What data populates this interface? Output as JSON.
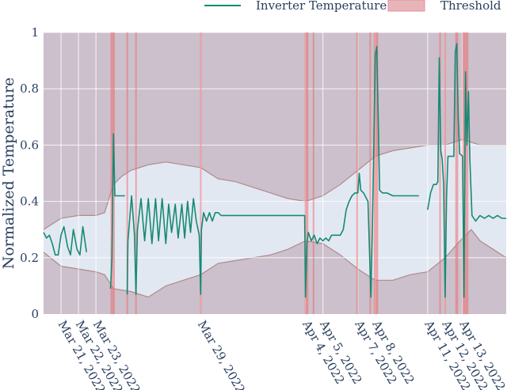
{
  "chart_data": {
    "type": "line",
    "xlabel": "",
    "ylabel": "Normalized Temperature",
    "ylim": [
      0,
      1
    ],
    "xlim": [
      "2022-03-20T00:00",
      "2022-04-15T12:00"
    ],
    "y_ticks": [
      0,
      0.2,
      0.4,
      0.6,
      0.8,
      1
    ],
    "y_tick_labels": [
      "0",
      "0.2",
      "0.4",
      "0.6",
      "0.8",
      "1"
    ],
    "x_ticks": [
      {
        "x": "2022-03-21",
        "label": "Mar 21, 2022"
      },
      {
        "x": "2022-03-22",
        "label": "Mar 22, 2022"
      },
      {
        "x": "2022-03-23",
        "label": "Mar 23, 2022"
      },
      {
        "x": "2022-03-29",
        "label": "Mar 29, 2022"
      },
      {
        "x": "2022-04-04",
        "label": "Apr 4, 2022"
      },
      {
        "x": "2022-04-05",
        "label": "Apr 5, 2022"
      },
      {
        "x": "2022-04-07",
        "label": "Apr 7, 2022"
      },
      {
        "x": "2022-04-08",
        "label": "Apr 8, 2022"
      },
      {
        "x": "2022-04-11",
        "label": "Apr 11, 2022"
      },
      {
        "x": "2022-04-12",
        "label": "Apr 12, 2022"
      },
      {
        "x": "2022-04-13",
        "label": "Apr 13, 2022"
      }
    ],
    "grid": true,
    "legend_position": "top-right",
    "colors": {
      "plot_background": "#cbc0cb",
      "band_fill": "#e2e8f2",
      "band_edge": "#b08a8a",
      "line": "#168a74",
      "threshold": "#ec6b70",
      "grid": "#ffffff",
      "text": "#2a3f5f"
    },
    "series": [
      {
        "name": "Inverter Temperature",
        "segments": [
          [
            [
              "2022-03-20T00:00",
              0.29
            ],
            [
              "2022-03-20T04:00",
              0.27
            ],
            [
              "2022-03-20T08:00",
              0.28
            ],
            [
              "2022-03-20T12:00",
              0.25
            ],
            [
              "2022-03-20T16:00",
              0.21
            ],
            [
              "2022-03-20T20:00",
              0.21
            ],
            [
              "2022-03-21T00:00",
              0.28
            ],
            [
              "2022-03-21T04:00",
              0.31
            ],
            [
              "2022-03-21T09:00",
              0.24
            ],
            [
              "2022-03-21T13:00",
              0.21
            ],
            [
              "2022-03-21T17:00",
              0.3
            ],
            [
              "2022-03-21T22:00",
              0.23
            ],
            [
              "2022-03-22T02:00",
              0.21
            ],
            [
              "2022-03-22T06:00",
              0.31
            ],
            [
              "2022-03-22T11:00",
              0.22
            ]
          ],
          [
            [
              "2022-03-23T20:00",
              0.09
            ],
            [
              "2022-03-23T22:00",
              0.2
            ],
            [
              "2022-03-24T00:00",
              0.64
            ],
            [
              "2022-03-24T02:00",
              0.42
            ],
            [
              "2022-03-24T14:00",
              0.42
            ],
            [
              "2022-03-24T16:00",
              0.42
            ]
          ],
          [
            [
              "2022-03-24T19:00",
              0.07
            ],
            [
              "2022-03-24T20:00",
              0.26
            ],
            [
              "2022-03-25T01:00",
              0.42
            ],
            [
              "2022-03-25T05:00",
              0.28
            ],
            [
              "2022-03-25T07:00",
              0.07
            ],
            [
              "2022-03-25T09:00",
              0.3
            ],
            [
              "2022-03-25T14:00",
              0.41
            ],
            [
              "2022-03-25T19:00",
              0.26
            ],
            [
              "2022-03-26T00:00",
              0.41
            ],
            [
              "2022-03-26T05:00",
              0.25
            ],
            [
              "2022-03-26T10:00",
              0.41
            ],
            [
              "2022-03-26T14:00",
              0.26
            ],
            [
              "2022-03-26T19:00",
              0.41
            ],
            [
              "2022-03-27T00:00",
              0.25
            ],
            [
              "2022-03-27T04:00",
              0.39
            ],
            [
              "2022-03-27T08:00",
              0.29
            ],
            [
              "2022-03-27T13:00",
              0.39
            ],
            [
              "2022-03-27T17:00",
              0.27
            ],
            [
              "2022-03-27T22:00",
              0.39
            ],
            [
              "2022-03-28T02:00",
              0.27
            ],
            [
              "2022-03-28T06:00",
              0.4
            ],
            [
              "2022-03-28T10:00",
              0.29
            ],
            [
              "2022-03-28T14:00",
              0.41
            ],
            [
              "2022-03-28T18:00",
              0.33
            ],
            [
              "2022-03-28T22:00",
              0.28
            ],
            [
              "2022-03-29T00:00",
              0.07
            ],
            [
              "2022-03-29T01:00",
              0.3
            ],
            [
              "2022-03-29T04:00",
              0.36
            ],
            [
              "2022-03-29T08:00",
              0.33
            ],
            [
              "2022-03-29T12:00",
              0.36
            ],
            [
              "2022-03-29T16:00",
              0.33
            ],
            [
              "2022-03-29T20:00",
              0.36
            ],
            [
              "2022-03-30T00:00",
              0.36
            ],
            [
              "2022-03-30T04:00",
              0.35
            ],
            [
              "2022-04-03T12:00",
              0.35
            ],
            [
              "2022-04-03T23:00",
              0.35
            ],
            [
              "2022-04-04T00:00",
              0.06
            ],
            [
              "2022-04-04T02:00",
              0.25
            ],
            [
              "2022-04-04T04:00",
              0.29
            ],
            [
              "2022-04-04T08:00",
              0.26
            ],
            [
              "2022-04-04T12:00",
              0.28
            ],
            [
              "2022-04-04T16:00",
              0.25
            ],
            [
              "2022-04-04T20:00",
              0.27
            ],
            [
              "2022-04-05T00:00",
              0.26
            ],
            [
              "2022-04-05T04:00",
              0.27
            ],
            [
              "2022-04-05T08:00",
              0.26
            ],
            [
              "2022-04-05T12:00",
              0.28
            ],
            [
              "2022-04-05T18:00",
              0.28
            ],
            [
              "2022-04-06T00:00",
              0.28
            ],
            [
              "2022-04-06T04:00",
              0.3
            ],
            [
              "2022-04-06T08:00",
              0.37
            ],
            [
              "2022-04-06T12:00",
              0.4
            ],
            [
              "2022-04-06T16:00",
              0.42
            ],
            [
              "2022-04-06T20:00",
              0.43
            ],
            [
              "2022-04-07T00:00",
              0.43
            ],
            [
              "2022-04-07T02:00",
              0.5
            ],
            [
              "2022-04-07T04:00",
              0.44
            ],
            [
              "2022-04-07T08:00",
              0.43
            ],
            [
              "2022-04-07T14:00",
              0.4
            ],
            [
              "2022-04-07T18:00",
              0.06
            ],
            [
              "2022-04-07T20:00",
              0.3
            ],
            [
              "2022-04-07T22:00",
              0.6
            ],
            [
              "2022-04-08T00:00",
              0.92
            ],
            [
              "2022-04-08T02:00",
              0.95
            ],
            [
              "2022-04-08T04:00",
              0.7
            ],
            [
              "2022-04-08T06:00",
              0.44
            ],
            [
              "2022-04-08T10:00",
              0.43
            ],
            [
              "2022-04-08T16:00",
              0.43
            ],
            [
              "2022-04-09T00:00",
              0.42
            ],
            [
              "2022-04-10T12:00",
              0.42
            ]
          ],
          [
            [
              "2022-04-11T00:00",
              0.37
            ],
            [
              "2022-04-11T04:00",
              0.43
            ],
            [
              "2022-04-11T08:00",
              0.46
            ],
            [
              "2022-04-11T12:00",
              0.46
            ],
            [
              "2022-04-11T14:00",
              0.47
            ],
            [
              "2022-04-11T16:00",
              0.91
            ],
            [
              "2022-04-11T18:00",
              0.58
            ],
            [
              "2022-04-11T20:00",
              0.55
            ],
            [
              "2022-04-11T22:00",
              0.46
            ],
            [
              "2022-04-12T00:00",
              0.06
            ],
            [
              "2022-04-12T02:00",
              0.42
            ],
            [
              "2022-04-12T04:00",
              0.56
            ],
            [
              "2022-04-12T08:00",
              0.56
            ],
            [
              "2022-04-12T12:00",
              0.56
            ],
            [
              "2022-04-12T14:00",
              0.93
            ],
            [
              "2022-04-12T16:00",
              0.96
            ],
            [
              "2022-04-12T18:00",
              0.7
            ],
            [
              "2022-04-12T20:00",
              0.57
            ],
            [
              "2022-04-13T00:00",
              0.56
            ],
            [
              "2022-04-13T02:00",
              0.06
            ],
            [
              "2022-04-13T04:00",
              0.86
            ],
            [
              "2022-04-13T06:00",
              0.6
            ],
            [
              "2022-04-13T08:00",
              0.79
            ],
            [
              "2022-04-13T10:00",
              0.55
            ],
            [
              "2022-04-13T13:00",
              0.35
            ],
            [
              "2022-04-13T18:00",
              0.33
            ],
            [
              "2022-04-14T00:00",
              0.35
            ],
            [
              "2022-04-14T06:00",
              0.34
            ],
            [
              "2022-04-14T12:00",
              0.35
            ],
            [
              "2022-04-14T18:00",
              0.34
            ],
            [
              "2022-04-15T00:00",
              0.35
            ],
            [
              "2022-04-15T06:00",
              0.34
            ],
            [
              "2022-04-15T12:00",
              0.34
            ]
          ]
        ]
      },
      {
        "name": "Threshold",
        "upper": [
          [
            "2022-03-20T00:00",
            0.3
          ],
          [
            "2022-03-21T00:00",
            0.34
          ],
          [
            "2022-03-22T00:00",
            0.35
          ],
          [
            "2022-03-23T00:00",
            0.35
          ],
          [
            "2022-03-23T12:00",
            0.36
          ],
          [
            "2022-03-24T00:00",
            0.46
          ],
          [
            "2022-03-24T12:00",
            0.49
          ],
          [
            "2022-03-25T00:00",
            0.51
          ],
          [
            "2022-03-26T00:00",
            0.53
          ],
          [
            "2022-03-27T00:00",
            0.54
          ],
          [
            "2022-03-28T00:00",
            0.53
          ],
          [
            "2022-03-29T00:00",
            0.52
          ],
          [
            "2022-03-30T00:00",
            0.48
          ],
          [
            "2022-03-31T00:00",
            0.47
          ],
          [
            "2022-04-01T00:00",
            0.45
          ],
          [
            "2022-04-02T00:00",
            0.43
          ],
          [
            "2022-04-03T00:00",
            0.41
          ],
          [
            "2022-04-04T00:00",
            0.4
          ],
          [
            "2022-04-05T00:00",
            0.42
          ],
          [
            "2022-04-06T00:00",
            0.46
          ],
          [
            "2022-04-07T00:00",
            0.51
          ],
          [
            "2022-04-08T00:00",
            0.56
          ],
          [
            "2022-04-09T00:00",
            0.58
          ],
          [
            "2022-04-10T00:00",
            0.59
          ],
          [
            "2022-04-11T00:00",
            0.6
          ],
          [
            "2022-04-12T00:00",
            0.6
          ],
          [
            "2022-04-13T00:00",
            0.62
          ],
          [
            "2022-04-13T12:00",
            0.61
          ],
          [
            "2022-04-14T00:00",
            0.6
          ],
          [
            "2022-04-15T12:00",
            0.6
          ]
        ],
        "lower": [
          [
            "2022-03-20T00:00",
            0.22
          ],
          [
            "2022-03-21T00:00",
            0.17
          ],
          [
            "2022-03-22T00:00",
            0.16
          ],
          [
            "2022-03-23T00:00",
            0.15
          ],
          [
            "2022-03-23T12:00",
            0.14
          ],
          [
            "2022-03-24T00:00",
            0.09
          ],
          [
            "2022-03-25T00:00",
            0.08
          ],
          [
            "2022-03-26T00:00",
            0.06
          ],
          [
            "2022-03-27T00:00",
            0.1
          ],
          [
            "2022-03-28T00:00",
            0.12
          ],
          [
            "2022-03-29T00:00",
            0.14
          ],
          [
            "2022-03-30T00:00",
            0.18
          ],
          [
            "2022-03-31T00:00",
            0.19
          ],
          [
            "2022-04-01T00:00",
            0.2
          ],
          [
            "2022-04-02T00:00",
            0.21
          ],
          [
            "2022-04-03T00:00",
            0.23
          ],
          [
            "2022-04-04T00:00",
            0.26
          ],
          [
            "2022-04-05T00:00",
            0.25
          ],
          [
            "2022-04-06T00:00",
            0.21
          ],
          [
            "2022-04-07T00:00",
            0.16
          ],
          [
            "2022-04-08T00:00",
            0.12
          ],
          [
            "2022-04-09T00:00",
            0.12
          ],
          [
            "2022-04-10T00:00",
            0.14
          ],
          [
            "2022-04-11T00:00",
            0.15
          ],
          [
            "2022-04-12T00:00",
            0.2
          ],
          [
            "2022-04-13T00:00",
            0.27
          ],
          [
            "2022-04-13T12:00",
            0.3
          ],
          [
            "2022-04-14T00:00",
            0.26
          ],
          [
            "2022-04-15T12:00",
            0.2
          ]
        ],
        "regions": [
          [
            "2022-03-23T20:00",
            "2022-03-24T02:00"
          ],
          [
            "2022-03-24T18:00",
            "2022-03-24T20:00"
          ],
          [
            "2022-03-25T06:00",
            "2022-03-25T08:00"
          ],
          [
            "2022-03-28T23:00",
            "2022-03-29T01:00"
          ],
          [
            "2022-04-03T23:00",
            "2022-04-04T04:00"
          ],
          [
            "2022-04-04T10:00",
            "2022-04-04T12:00"
          ],
          [
            "2022-04-06T22:00",
            "2022-04-07T00:00"
          ],
          [
            "2022-04-07T16:00",
            "2022-04-07T18:00"
          ],
          [
            "2022-04-07T22:00",
            "2022-04-08T04:00"
          ],
          [
            "2022-04-11T16:00",
            "2022-04-11T18:00"
          ],
          [
            "2022-04-11T23:00",
            "2022-04-12T01:00"
          ],
          [
            "2022-04-12T14:00",
            "2022-04-12T18:00"
          ],
          [
            "2022-04-13T00:00",
            "2022-04-13T08:00"
          ]
        ]
      }
    ]
  }
}
